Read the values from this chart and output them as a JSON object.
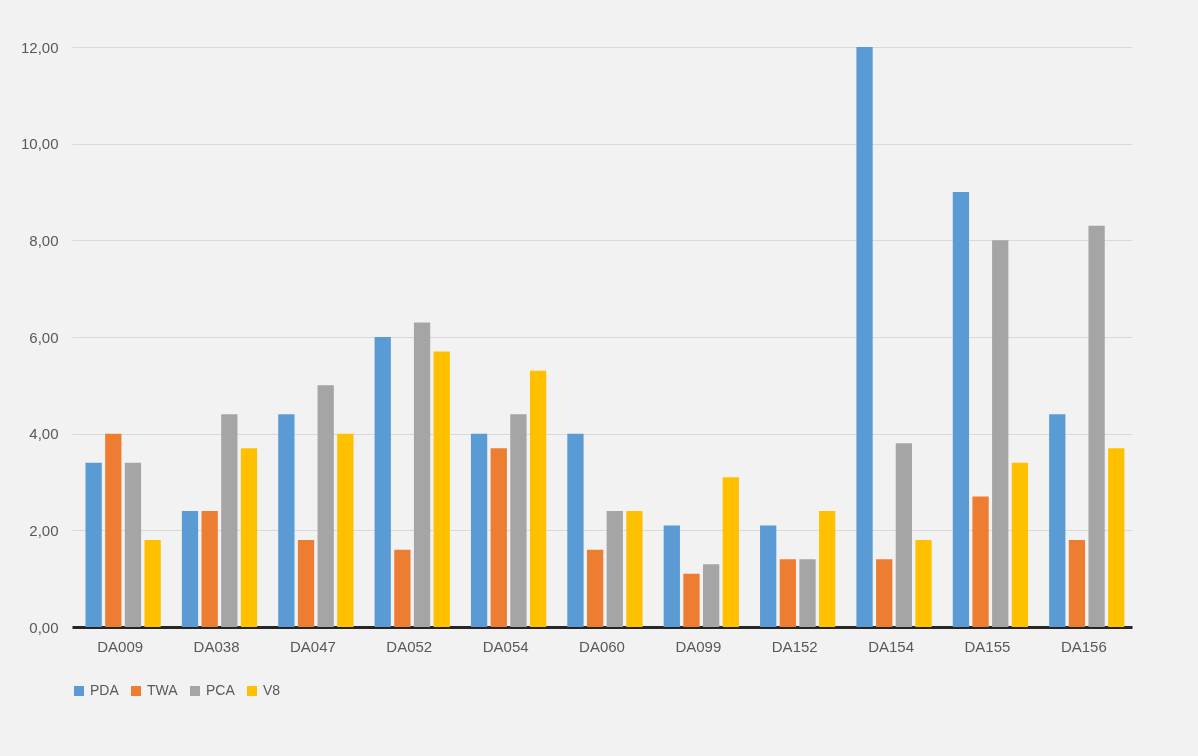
{
  "chart_data": {
    "type": "bar",
    "categories": [
      "DA009",
      "DA038",
      "DA047",
      "DA052",
      "DA054",
      "DA060",
      "DA099",
      "DA152",
      "DA154",
      "DA155",
      "DA156"
    ],
    "series": [
      {
        "name": "PDA",
        "color": "#5b9bd5",
        "values": [
          3.4,
          2.4,
          4.4,
          6.0,
          4.0,
          4.0,
          2.1,
          2.1,
          12.0,
          9.0,
          4.4
        ]
      },
      {
        "name": "TWA",
        "color": "#ed7d31",
        "values": [
          4.0,
          2.4,
          1.8,
          1.6,
          3.7,
          1.6,
          1.1,
          1.4,
          1.4,
          2.7,
          1.8
        ]
      },
      {
        "name": "PCA",
        "color": "#a5a5a5",
        "values": [
          3.4,
          4.4,
          5.0,
          6.3,
          4.4,
          2.4,
          1.3,
          1.4,
          3.8,
          8.0,
          8.3
        ]
      },
      {
        "name": "V8",
        "color": "#ffc000",
        "values": [
          1.8,
          3.7,
          4.0,
          5.7,
          5.3,
          2.4,
          3.1,
          2.4,
          1.8,
          3.4,
          3.7
        ]
      }
    ],
    "ylim": [
      0,
      12
    ],
    "yticks": [
      {
        "value": 0,
        "label": "0,00"
      },
      {
        "value": 2,
        "label": "2,00"
      },
      {
        "value": 4,
        "label": "4,00"
      },
      {
        "value": 6,
        "label": "6,00"
      },
      {
        "value": 8,
        "label": "8,00"
      },
      {
        "value": 10,
        "label": "10,00"
      },
      {
        "value": 12,
        "label": "12,00"
      }
    ],
    "grid": "y",
    "legend": "bottom"
  }
}
